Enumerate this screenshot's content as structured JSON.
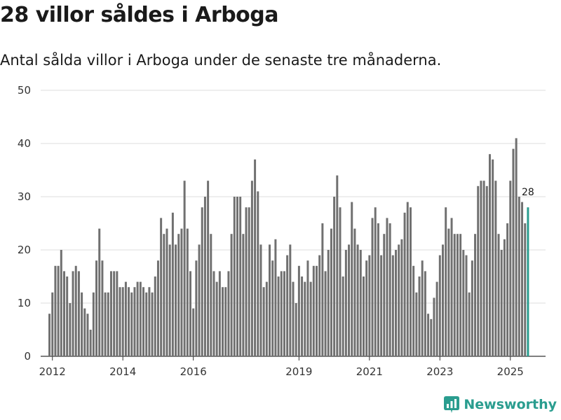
{
  "header": {
    "title": "28 villor såldes i Arboga",
    "subtitle": "Antal sålda villor i Arboga under de senaste tre månaderna."
  },
  "brand": {
    "name": "Newsworthy"
  },
  "colors": {
    "bar": "#707070",
    "highlight": "#2a9d8f",
    "grid": "#dddddd",
    "axis": "#333333"
  },
  "chart_data": {
    "type": "bar",
    "title": "28 villor såldes i Arboga",
    "subtitle": "Antal sålda villor i Arboga under de senaste tre månaderna.",
    "xlabel": "",
    "ylabel": "",
    "ylim": [
      0,
      50
    ],
    "yticks": [
      0,
      10,
      20,
      30,
      40,
      50
    ],
    "x_range": [
      2011.667,
      2026.0
    ],
    "xticks": [
      2012,
      2014,
      2016,
      2019,
      2021,
      2023,
      2025
    ],
    "x_start": 2011.917,
    "x_step": 0.0833333,
    "values": [
      8,
      12,
      17,
      17,
      20,
      16,
      15,
      10,
      16,
      17,
      16,
      12,
      9,
      8,
      5,
      12,
      18,
      24,
      18,
      12,
      12,
      16,
      16,
      16,
      13,
      13,
      14,
      13,
      12,
      13,
      14,
      14,
      13,
      12,
      13,
      12,
      15,
      18,
      26,
      23,
      24,
      21,
      27,
      21,
      23,
      24,
      33,
      24,
      16,
      9,
      18,
      21,
      28,
      30,
      33,
      23,
      16,
      14,
      16,
      13,
      13,
      16,
      23,
      30,
      30,
      30,
      23,
      28,
      28,
      33,
      37,
      31,
      21,
      13,
      14,
      21,
      18,
      22,
      15,
      16,
      16,
      19,
      21,
      14,
      10,
      17,
      15,
      14,
      18,
      14,
      17,
      17,
      19,
      25,
      16,
      20,
      24,
      30,
      34,
      28,
      15,
      20,
      21,
      29,
      24,
      21,
      20,
      15,
      18,
      19,
      26,
      28,
      25,
      19,
      23,
      26,
      25,
      19,
      20,
      21,
      22,
      27,
      29,
      28,
      17,
      12,
      15,
      18,
      16,
      8,
      7,
      11,
      14,
      19,
      21,
      28,
      24,
      26,
      23,
      23,
      23,
      20,
      19,
      12,
      18,
      23,
      32,
      33,
      33,
      32,
      38,
      37,
      33,
      23,
      20,
      22,
      25,
      33,
      39,
      41,
      30,
      29,
      25,
      28
    ],
    "highlight_last": true,
    "last_label": "28"
  }
}
